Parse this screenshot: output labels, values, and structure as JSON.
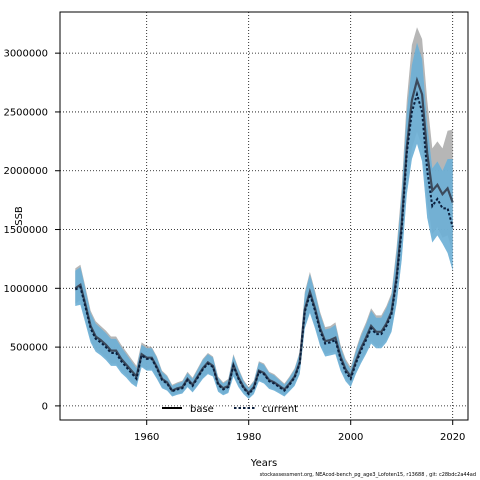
{
  "footer_text": "stockassessment.org, NEAcod-bench_pg_age3_Lofoten15, r13688 , git: c28bdc2a44ad",
  "chart_data": {
    "type": "line",
    "xlabel": "Years",
    "ylabel": "SSB",
    "xlim": [
      1943,
      2023
    ],
    "ylim": [
      -120000,
      3350000
    ],
    "x_ticks": [
      1960,
      1980,
      2000,
      2020
    ],
    "y_ticks": [
      0,
      500000,
      1000000,
      1500000,
      2000000,
      2500000,
      3000000
    ],
    "x_tick_labels": [
      "1960",
      "1980",
      "2000",
      "2020"
    ],
    "y_tick_labels": [
      "0",
      "500000",
      "1000000",
      "1500000",
      "2000000",
      "2500000",
      "3000000"
    ],
    "grid": true,
    "legend_position": "bottom-center",
    "colors": {
      "base": "#3c4a5c",
      "base_band": "#9e9e9e",
      "current": "#0a1e3c",
      "current_band": "#4f9cc8",
      "current_band_light": "#a8d4f0"
    },
    "x": [
      1946,
      1947,
      1948,
      1949,
      1950,
      1951,
      1952,
      1953,
      1954,
      1955,
      1956,
      1957,
      1958,
      1959,
      1960,
      1961,
      1962,
      1963,
      1964,
      1965,
      1966,
      1967,
      1968,
      1969,
      1970,
      1971,
      1972,
      1973,
      1974,
      1975,
      1976,
      1977,
      1978,
      1979,
      1980,
      1981,
      1982,
      1983,
      1984,
      1985,
      1986,
      1987,
      1988,
      1989,
      1990,
      1991,
      1992,
      1993,
      1994,
      1995,
      1996,
      1997,
      1998,
      1999,
      2000,
      2001,
      2002,
      2003,
      2004,
      2005,
      2006,
      2007,
      2008,
      2009,
      2010,
      2011,
      2012,
      2013,
      2014,
      2015,
      2016,
      2017,
      2018,
      2019,
      2020
    ],
    "series": [
      {
        "name": "base",
        "values": [
          1000000,
          1030000,
          860000,
          680000,
          590000,
          560000,
          520000,
          470000,
          470000,
          400000,
          350000,
          300000,
          250000,
          440000,
          410000,
          410000,
          330000,
          230000,
          200000,
          130000,
          150000,
          160000,
          230000,
          180000,
          250000,
          320000,
          370000,
          340000,
          190000,
          150000,
          170000,
          350000,
          240000,
          160000,
          110000,
          160000,
          300000,
          280000,
          220000,
          200000,
          170000,
          140000,
          190000,
          250000,
          370000,
          820000,
          970000,
          830000,
          660000,
          550000,
          560000,
          580000,
          420000,
          310000,
          250000,
          380000,
          490000,
          580000,
          680000,
          630000,
          630000,
          700000,
          800000,
          1100000,
          1550000,
          2200000,
          2600000,
          2770000,
          2650000,
          2150000,
          1830000,
          1880000,
          1800000,
          1850000,
          1730000
        ],
        "lower": [
          870000,
          900000,
          730000,
          560000,
          480000,
          450000,
          410000,
          360000,
          360000,
          300000,
          260000,
          210000,
          180000,
          340000,
          310000,
          320000,
          240000,
          160000,
          140000,
          85000,
          105000,
          115000,
          170000,
          125000,
          180000,
          240000,
          280000,
          260000,
          130000,
          100000,
          115000,
          260000,
          170000,
          110000,
          70000,
          110000,
          220000,
          200000,
          155000,
          140000,
          115000,
          90000,
          135000,
          180000,
          280000,
          680000,
          810000,
          680000,
          530000,
          440000,
          450000,
          460000,
          320000,
          230000,
          180000,
          290000,
          380000,
          460000,
          550000,
          510000,
          510000,
          560000,
          650000,
          900000,
          1290000,
          1850000,
          2190000,
          2330000,
          2200000,
          1730000,
          1460000,
          1520000,
          1430000,
          1450000,
          1300000
        ],
        "upper": [
          1170000,
          1200000,
          1010000,
          810000,
          720000,
          680000,
          640000,
          590000,
          590000,
          520000,
          460000,
          400000,
          340000,
          540000,
          510000,
          500000,
          420000,
          300000,
          260000,
          180000,
          200000,
          215000,
          290000,
          240000,
          320000,
          400000,
          450000,
          420000,
          250000,
          200000,
          230000,
          440000,
          320000,
          220000,
          160000,
          215000,
          380000,
          360000,
          290000,
          270000,
          230000,
          190000,
          250000,
          320000,
          460000,
          970000,
          1140000,
          980000,
          800000,
          670000,
          680000,
          710000,
          520000,
          400000,
          330000,
          480000,
          610000,
          710000,
          830000,
          770000,
          770000,
          850000,
          960000,
          1350000,
          1860000,
          2600000,
          3070000,
          3220000,
          3120000,
          2600000,
          2190000,
          2250000,
          2190000,
          2340000,
          2350000
        ]
      },
      {
        "name": "current",
        "values": [
          990000,
          1010000,
          840000,
          660000,
          570000,
          540000,
          500000,
          450000,
          450000,
          380000,
          330000,
          280000,
          230000,
          430000,
          400000,
          400000,
          320000,
          220000,
          190000,
          125000,
          140000,
          150000,
          220000,
          170000,
          240000,
          310000,
          360000,
          330000,
          180000,
          140000,
          160000,
          340000,
          230000,
          150000,
          100000,
          150000,
          290000,
          270000,
          210000,
          190000,
          160000,
          130000,
          180000,
          240000,
          360000,
          800000,
          950000,
          810000,
          640000,
          530000,
          540000,
          560000,
          400000,
          290000,
          230000,
          360000,
          470000,
          560000,
          660000,
          610000,
          610000,
          680000,
          780000,
          1070000,
          1500000,
          2150000,
          2500000,
          2650000,
          2500000,
          2000000,
          1700000,
          1760000,
          1680000,
          1680000,
          1520000
        ],
        "lower": [
          850000,
          860000,
          700000,
          540000,
          460000,
          430000,
          390000,
          340000,
          340000,
          280000,
          240000,
          190000,
          160000,
          330000,
          300000,
          300000,
          230000,
          150000,
          130000,
          80000,
          95000,
          105000,
          160000,
          115000,
          170000,
          230000,
          270000,
          250000,
          120000,
          90000,
          110000,
          250000,
          160000,
          100000,
          60000,
          100000,
          210000,
          190000,
          145000,
          130000,
          105000,
          80000,
          125000,
          170000,
          270000,
          660000,
          790000,
          660000,
          510000,
          420000,
          430000,
          440000,
          300000,
          210000,
          160000,
          270000,
          360000,
          440000,
          530000,
          490000,
          490000,
          540000,
          630000,
          870000,
          1240000,
          1800000,
          2100000,
          2230000,
          2080000,
          1600000,
          1390000,
          1450000,
          1380000,
          1300000,
          1150000
        ],
        "upper": [
          1150000,
          1180000,
          990000,
          790000,
          700000,
          660000,
          620000,
          570000,
          570000,
          500000,
          440000,
          380000,
          320000,
          520000,
          490000,
          490000,
          410000,
          290000,
          250000,
          170000,
          190000,
          205000,
          280000,
          230000,
          310000,
          390000,
          440000,
          410000,
          240000,
          190000,
          220000,
          430000,
          310000,
          210000,
          150000,
          205000,
          370000,
          350000,
          280000,
          260000,
          220000,
          180000,
          240000,
          310000,
          450000,
          950000,
          1120000,
          960000,
          780000,
          650000,
          660000,
          690000,
          500000,
          380000,
          310000,
          460000,
          590000,
          690000,
          810000,
          750000,
          750000,
          830000,
          940000,
          1310000,
          1800000,
          2500000,
          2900000,
          3090000,
          2950000,
          2400000,
          2020000,
          2080000,
          2000000,
          2100000,
          2100000
        ]
      }
    ]
  },
  "legend": {
    "items": [
      {
        "label": "base",
        "style": "solid"
      },
      {
        "label": "current",
        "style": "dashed"
      }
    ]
  }
}
